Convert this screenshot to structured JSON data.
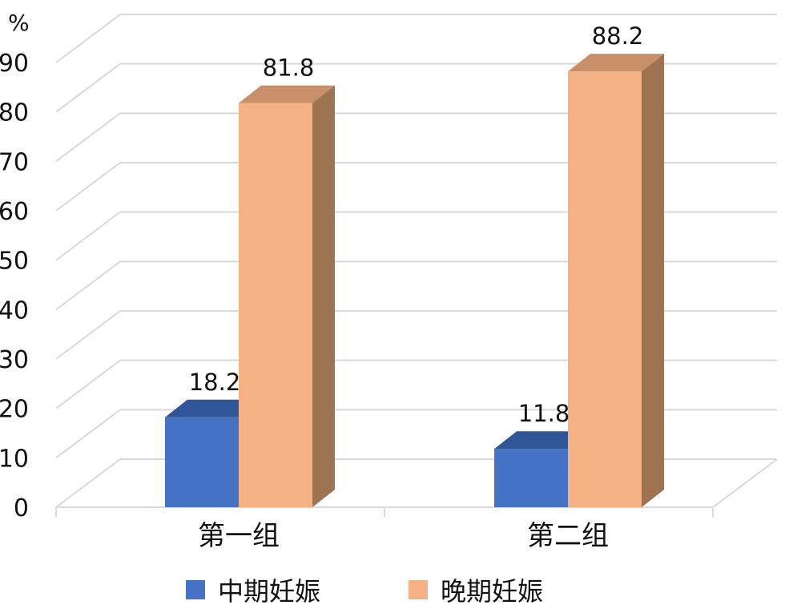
{
  "chart_data": {
    "type": "bar",
    "unit_label": "%",
    "categories": [
      "第一组",
      "第二组"
    ],
    "series": [
      {
        "name": "中期妊娠",
        "values": [
          18.2,
          11.8
        ],
        "color": "#4472C4",
        "top_color": "#2F5597"
      },
      {
        "name": "晚期妊娠",
        "values": [
          81.8,
          88.2
        ],
        "color": "#F4B183",
        "top_color": "#C8906A",
        "side_color": "#9E7351"
      }
    ],
    "ylim": [
      0,
      90
    ],
    "yticks": [
      "0",
      "10",
      "20",
      "30",
      "40",
      "50",
      "60",
      "70",
      "80",
      "90"
    ],
    "data_labels": [
      "18.2",
      "81.8",
      "11.8",
      "88.2"
    ],
    "grid": true,
    "three_d": true,
    "legend_position": "bottom"
  }
}
